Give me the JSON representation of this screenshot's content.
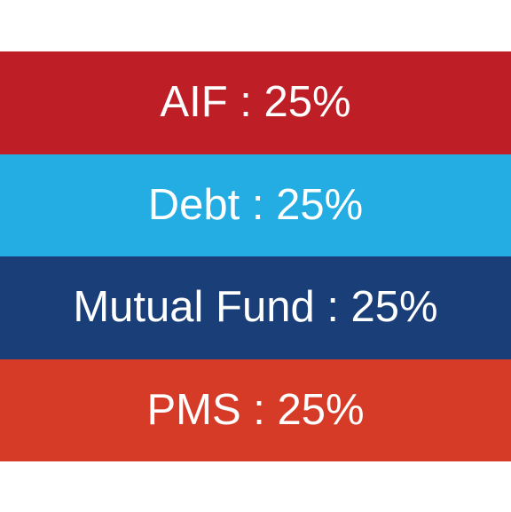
{
  "allocation": {
    "items": [
      {
        "label": "AIF : 25%",
        "color": "#be1e26"
      },
      {
        "label": "Debt : 25%",
        "color": "#23ade2"
      },
      {
        "label": "Mutual Fund : 25%",
        "color": "#1a3e78"
      },
      {
        "label": "PMS : 25%",
        "color": "#d63b28"
      }
    ]
  }
}
